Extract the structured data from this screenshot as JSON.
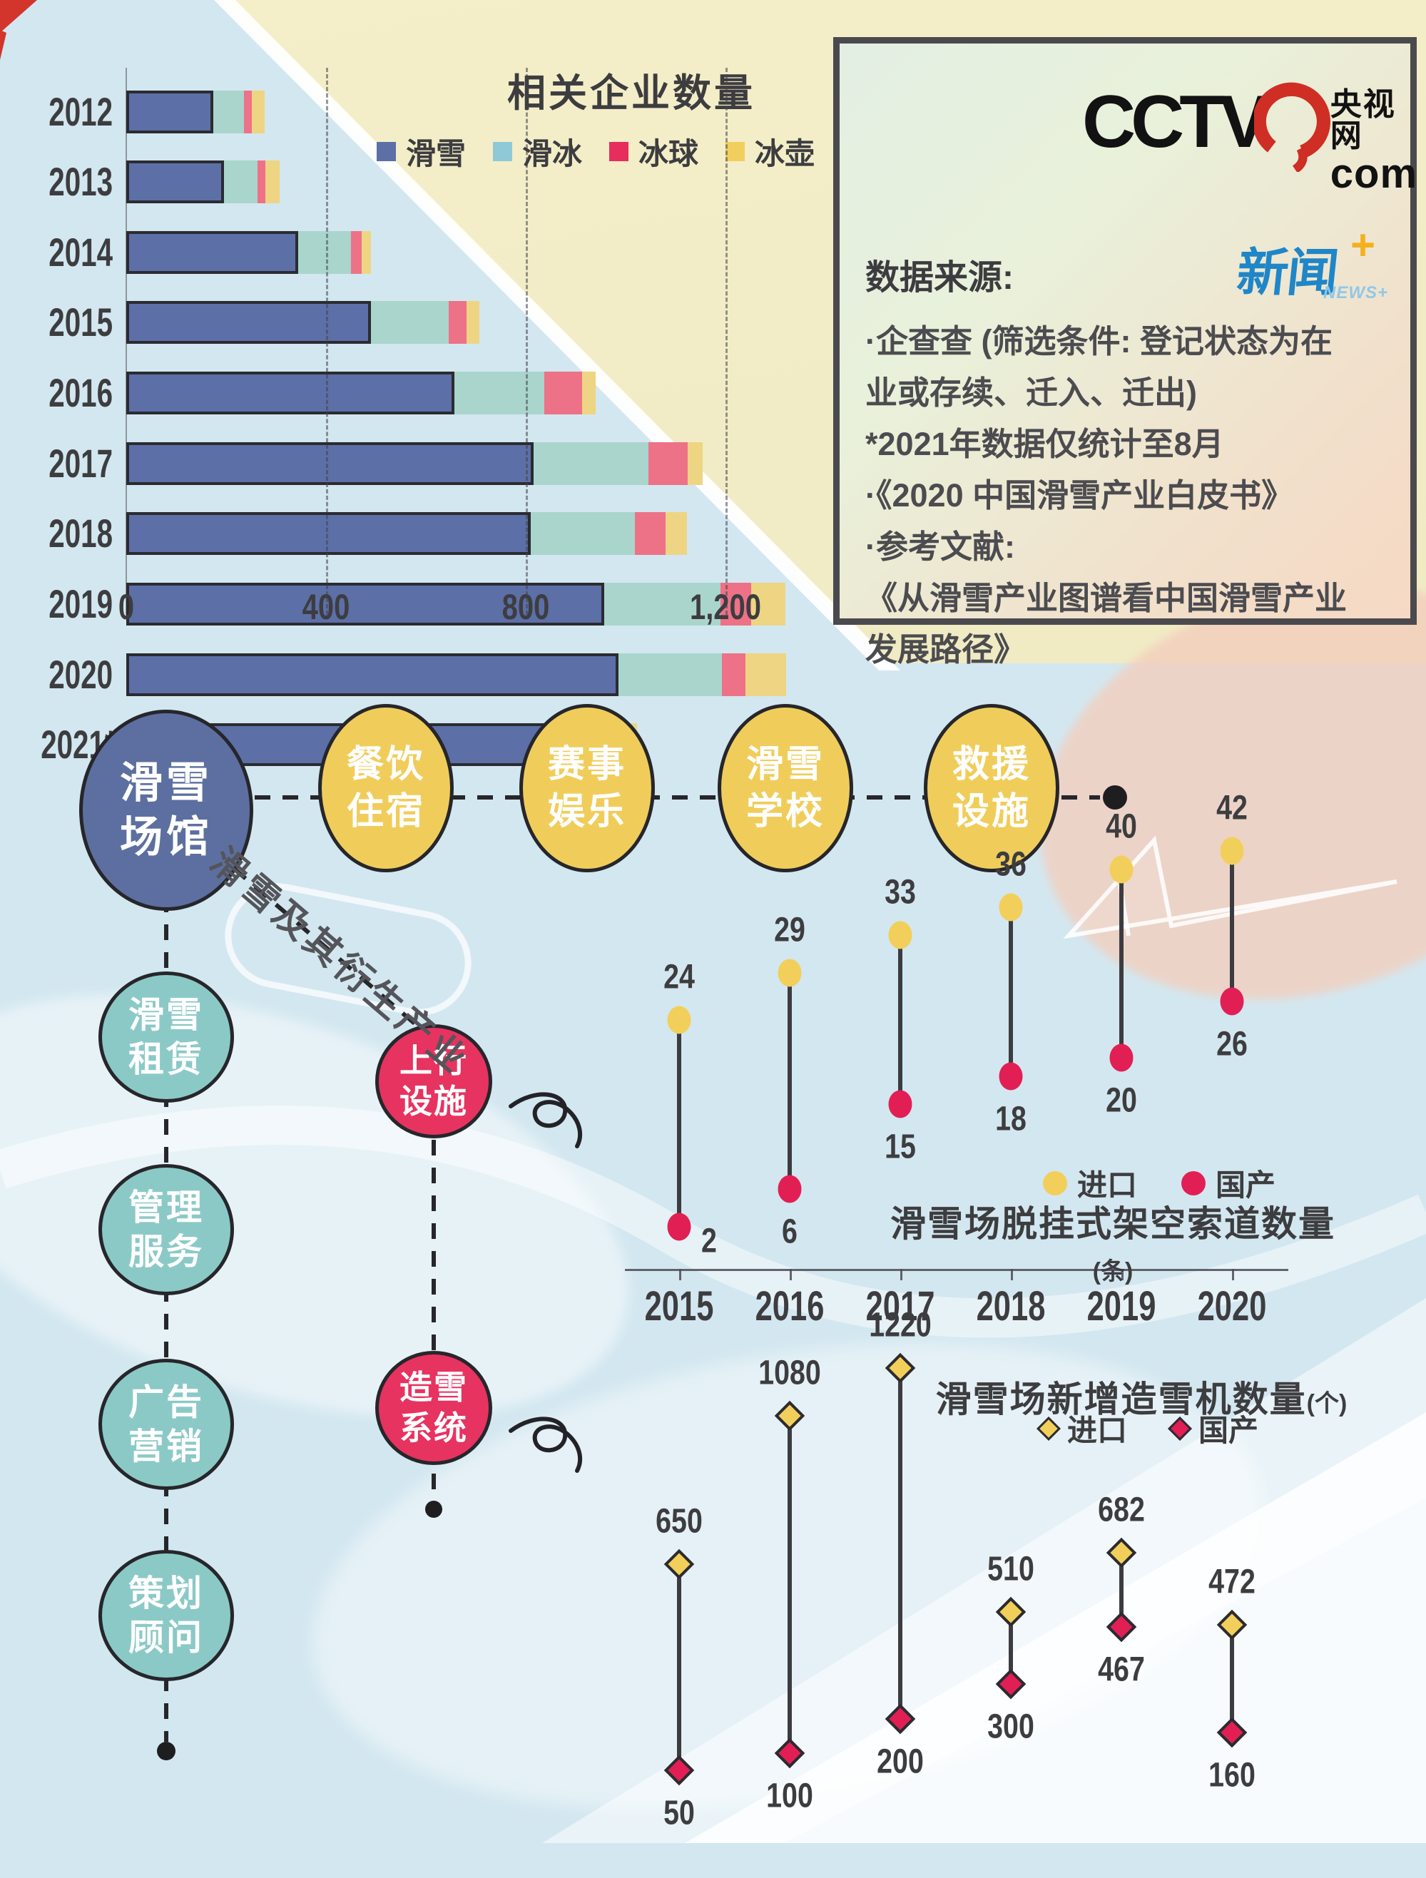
{
  "page": {
    "kind": "infographic",
    "topic": "China ski industry"
  },
  "colors": {
    "bar_ski": "#5c6fa7",
    "bar_skate": "#a9d5cd",
    "bar_hockey": "#ed7287",
    "bar_curling": "#eed584",
    "legend_skate": "#8fc9d7",
    "legend_hockey": "#e62d5d",
    "legend_curling": "#f1ce5d",
    "import_yellow": "#f2cf5a",
    "domestic_red": "#e21f55",
    "circle_blue": "#5c6fa0",
    "circle_yellow": "#f0cd5b",
    "circle_teal": "#8bc9c7",
    "circle_pink": "#e73360",
    "dark_text": "#3d3d40"
  },
  "chart_data": [
    {
      "id": "enterprises",
      "type": "bar",
      "orientation": "horizontal",
      "stacked": true,
      "title": "相关企业数量",
      "categories": [
        "2012",
        "2013",
        "2014",
        "2015",
        "2016",
        "2017",
        "2018",
        "2019",
        "2020",
        "2021*"
      ],
      "series": [
        {
          "name": "滑雪",
          "color": "#5c6fa7",
          "legend_color": "#5c6fa7",
          "values": [
            175,
            195,
            345,
            490,
            657,
            815,
            810,
            957,
            986,
            840
          ]
        },
        {
          "name": "滑冰",
          "color": "#a9d5cd",
          "legend_color": "#8fc9d7",
          "values": [
            62,
            67,
            105,
            155,
            180,
            230,
            208,
            233,
            207,
            99
          ]
        },
        {
          "name": "冰球",
          "color": "#ed7287",
          "legend_color": "#e62d5d",
          "values": [
            16,
            16,
            21,
            36,
            76,
            78,
            62,
            62,
            47,
            43
          ]
        },
        {
          "name": "冰壶",
          "color": "#eed584",
          "legend_color": "#f1ce5d",
          "values": [
            25,
            28,
            19,
            26,
            27,
            30,
            43,
            69,
            81,
            41
          ]
        }
      ],
      "xlim": [
        0,
        1300
      ],
      "x_ticks": [
        {
          "label": "0",
          "value": 0
        },
        {
          "label": "400",
          "value": 400
        },
        {
          "label": "800",
          "value": 800
        },
        {
          "label": "1,200",
          "value": 1200
        }
      ],
      "grid": "dashed-vertical",
      "legend_position": "top"
    },
    {
      "id": "ropeway",
      "type": "dumbbell",
      "title": "滑雪场脱挂式架空索道数量",
      "title_unit": "(条)",
      "categories": [
        "2015",
        "2016",
        "2017",
        "2018",
        "2019",
        "2020"
      ],
      "series": [
        {
          "name": "进口",
          "marker": "circle",
          "color": "#f2cf5a",
          "values": [
            24,
            29,
            33,
            36,
            40,
            42
          ]
        },
        {
          "name": "国产",
          "marker": "circle",
          "color": "#e21f55",
          "values": [
            2,
            6,
            15,
            18,
            20,
            26
          ]
        }
      ],
      "ylim": [
        0,
        45
      ],
      "x_axis_shown": true,
      "legend_position": "above-title"
    },
    {
      "id": "snowmachine",
      "type": "dumbbell",
      "title": "滑雪场新增造雪机数量",
      "title_unit": "(个)",
      "categories": [
        "2015",
        "2016",
        "2017",
        "2018",
        "2019",
        "2020"
      ],
      "series": [
        {
          "name": "进口",
          "marker": "diamond",
          "color": "#f2cf5a",
          "values": [
            650,
            1080,
            1220,
            510,
            682,
            472
          ]
        },
        {
          "name": "国产",
          "marker": "diamond",
          "color": "#e21f55",
          "values": [
            50,
            100,
            200,
            300,
            467,
            160
          ]
        }
      ],
      "ylim": [
        0,
        1250
      ],
      "x_axis_shown": false,
      "legend_position": "below-title"
    }
  ],
  "source_box": {
    "cctv_logo": {
      "word": "CCTV",
      "cn": "央视网",
      "com": "com"
    },
    "news_logo": {
      "cn": "新闻",
      "plus": "+",
      "sub": "NEWS+"
    },
    "heading": "数据来源:",
    "lines": [
      "·企查查 (筛选条件: 登记状态为在",
      "业或存续、迁入、迁出)",
      "*2021年数据仅统计至8月",
      "·《2020 中国滑雪产业白皮书》",
      "·参考文献:",
      "《从滑雪产业图谱看中国滑雪产业",
      "发展路径》"
    ]
  },
  "industry_map": {
    "root": "滑雪\n场馆",
    "top_row": [
      "餐饮\n住宿",
      "赛事\n娱乐",
      "滑雪\n学校",
      "救援\n设施"
    ],
    "left_column": [
      "滑雪\n租赁",
      "管理\n服务",
      "广告\n营销",
      "策划\n顾问"
    ],
    "pink_nodes": [
      "上行\n设施",
      "造雪\n系统"
    ],
    "diagonal_label": "滑雪及其衍生产业"
  }
}
